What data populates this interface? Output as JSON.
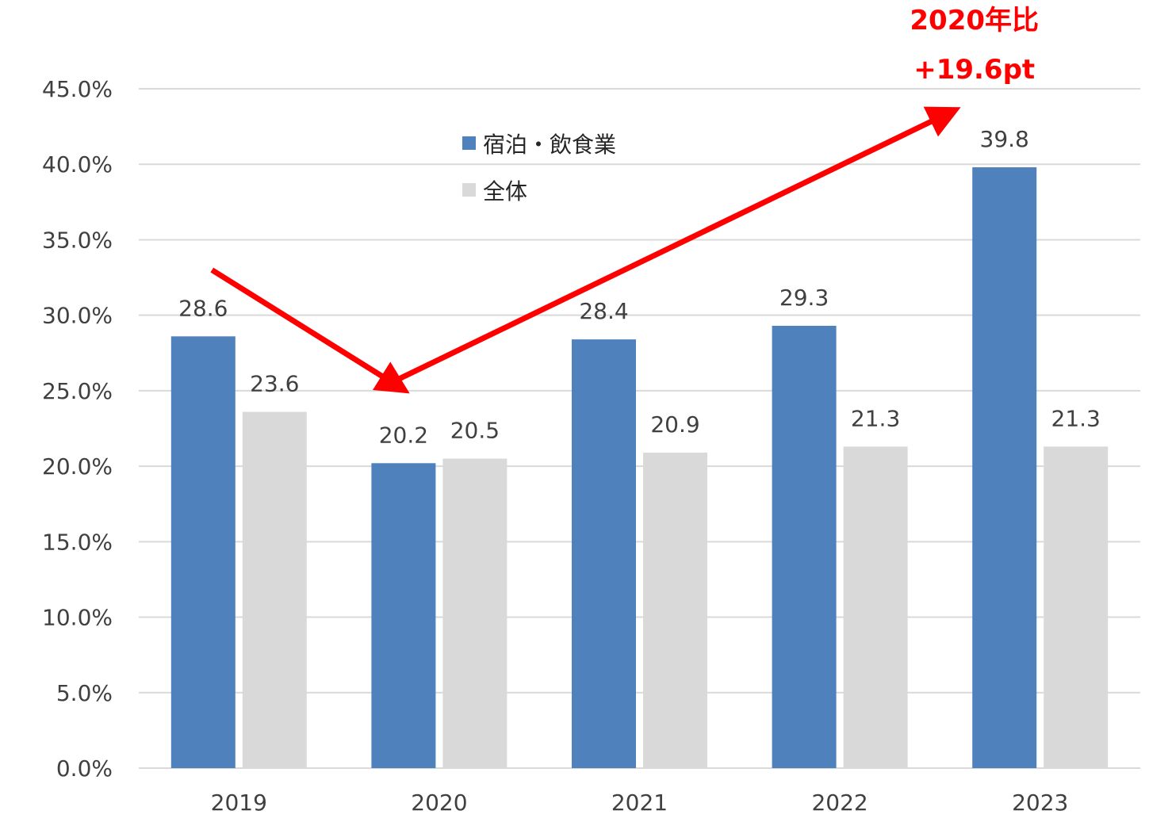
{
  "chart_data": {
    "type": "bar",
    "categories": [
      "2019",
      "2020",
      "2021",
      "2022",
      "2023"
    ],
    "series": [
      {
        "name": "宿泊・飲食業",
        "values": [
          28.6,
          20.2,
          28.4,
          29.3,
          39.8
        ],
        "color": "#4f81bd",
        "labels": [
          "28.6",
          "20.2",
          "28.4",
          "29.3",
          "39.8"
        ]
      },
      {
        "name": "全体",
        "values": [
          23.6,
          20.5,
          20.9,
          21.3,
          21.3
        ],
        "color": "#d9d9d9",
        "labels": [
          "23.6",
          "20.5",
          "20.9",
          "21.3",
          "21.3"
        ]
      }
    ],
    "ylim": [
      0,
      45
    ],
    "yticks": [
      "0.0%",
      "5.0%",
      "10.0%",
      "15.0%",
      "20.0%",
      "25.0%",
      "30.0%",
      "35.0%",
      "40.0%",
      "45.0%"
    ],
    "ytick_values": [
      0,
      5,
      10,
      15,
      20,
      25,
      30,
      35,
      40,
      45
    ],
    "grid": true,
    "legend_position": "top-center",
    "annotation": {
      "lines": [
        "2020年比",
        "+19.6pt"
      ],
      "color": "#ff0000"
    },
    "arrow_color": "#ff0000",
    "gridline_color": "#d9d9d9"
  }
}
